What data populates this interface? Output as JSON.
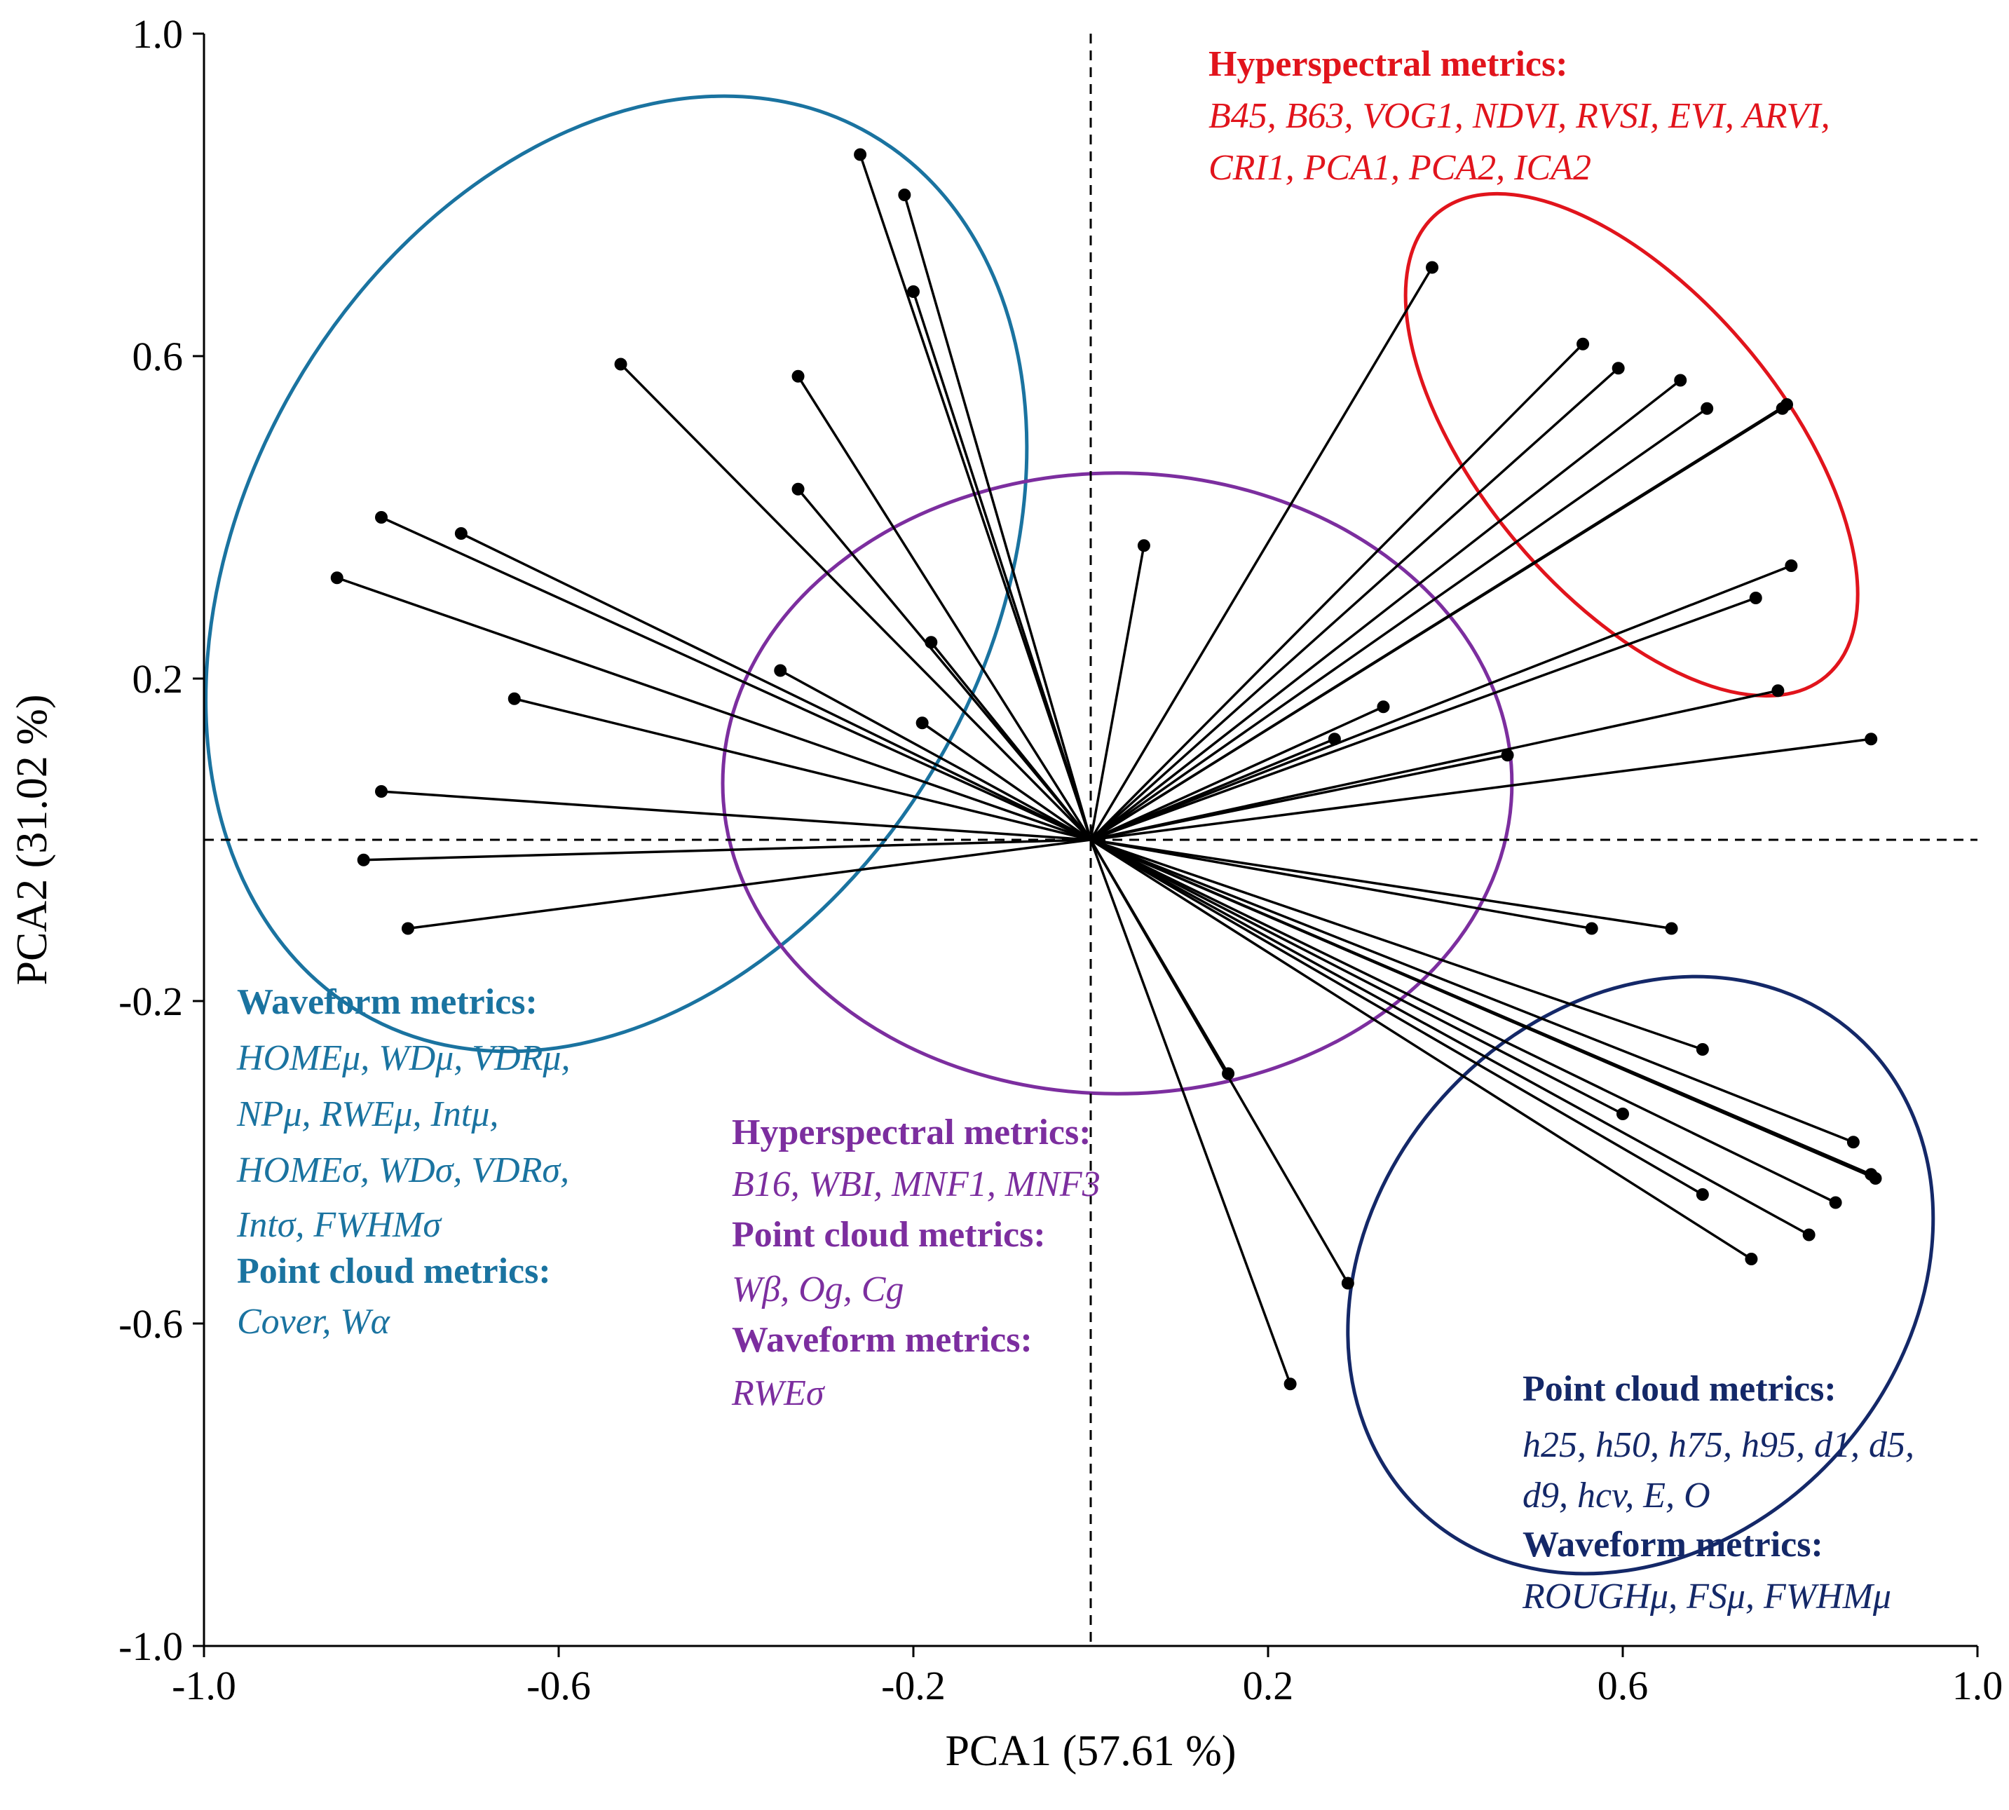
{
  "chart_data": {
    "type": "scatter",
    "subtype": "pca-biplot-loadings",
    "title": "",
    "xlabel": "PCA1 (57.61 %)",
    "ylabel": "PCA2 (31.02 %)",
    "xlim": [
      -1.0,
      1.0
    ],
    "ylim": [
      -1.0,
      1.0
    ],
    "xticks": [
      -1.0,
      -0.6,
      -0.2,
      0.2,
      0.6,
      1.0
    ],
    "yticks": [
      -1.0,
      -0.6,
      -0.2,
      0.2,
      0.6,
      1.0
    ],
    "xtick_labels": [
      "-1.0",
      "-0.6",
      "-0.2",
      "0.2",
      "0.6",
      "1.0"
    ],
    "ytick_labels": [
      "-1.0",
      "-0.6",
      "-0.2",
      "0.2",
      "0.6",
      "1.0"
    ],
    "reference_lines": {
      "x": 0,
      "y": 0,
      "style": "dashed"
    },
    "colors": {
      "teal": "#1A73A0",
      "red": "#E1141C",
      "purple": "#7C2E9F",
      "navy": "#142868",
      "vector": "#000000"
    },
    "vectors": [
      {
        "x": -0.26,
        "y": 0.85
      },
      {
        "x": -0.21,
        "y": 0.8
      },
      {
        "x": -0.2,
        "y": 0.68
      },
      {
        "x": -0.53,
        "y": 0.59
      },
      {
        "x": -0.33,
        "y": 0.575
      },
      {
        "x": -0.8,
        "y": 0.4
      },
      {
        "x": -0.71,
        "y": 0.38
      },
      {
        "x": -0.85,
        "y": 0.325
      },
      {
        "x": -0.33,
        "y": 0.435
      },
      {
        "x": -0.18,
        "y": 0.245
      },
      {
        "x": -0.35,
        "y": 0.21
      },
      {
        "x": -0.65,
        "y": 0.175
      },
      {
        "x": -0.19,
        "y": 0.145
      },
      {
        "x": -0.8,
        "y": 0.06
      },
      {
        "x": -0.82,
        "y": -0.025
      },
      {
        "x": -0.77,
        "y": -0.11
      },
      {
        "x": 0.06,
        "y": 0.365
      },
      {
        "x": 0.385,
        "y": 0.71
      },
      {
        "x": 0.555,
        "y": 0.615
      },
      {
        "x": 0.595,
        "y": 0.585
      },
      {
        "x": 0.665,
        "y": 0.57
      },
      {
        "x": 0.695,
        "y": 0.535
      },
      {
        "x": 0.785,
        "y": 0.54
      },
      {
        "x": 0.78,
        "y": 0.535
      },
      {
        "x": 0.79,
        "y": 0.34
      },
      {
        "x": 0.75,
        "y": 0.3
      },
      {
        "x": 0.775,
        "y": 0.185
      },
      {
        "x": 0.33,
        "y": 0.165
      },
      {
        "x": 0.275,
        "y": 0.125
      },
      {
        "x": 0.47,
        "y": 0.105
      },
      {
        "x": 0.88,
        "y": 0.125
      },
      {
        "x": 0.565,
        "y": -0.11
      },
      {
        "x": 0.655,
        "y": -0.11
      },
      {
        "x": 0.69,
        "y": -0.26
      },
      {
        "x": 0.86,
        "y": -0.375
      },
      {
        "x": 0.88,
        "y": -0.415
      },
      {
        "x": 0.885,
        "y": -0.42
      },
      {
        "x": 0.6,
        "y": -0.34
      },
      {
        "x": 0.69,
        "y": -0.44
      },
      {
        "x": 0.84,
        "y": -0.45
      },
      {
        "x": 0.81,
        "y": -0.49
      },
      {
        "x": 0.745,
        "y": -0.52
      },
      {
        "x": 0.155,
        "y": -0.29
      },
      {
        "x": 0.29,
        "y": -0.55
      },
      {
        "x": 0.225,
        "y": -0.675
      }
    ],
    "ellipses": [
      {
        "group": "teal",
        "cx": -0.535,
        "cy": 0.33,
        "rx": 0.42,
        "ry": 0.63,
        "angle_deg": 30
      },
      {
        "group": "red",
        "cx": 0.61,
        "cy": 0.49,
        "rx": 0.17,
        "ry": 0.375,
        "angle_deg": -40
      },
      {
        "group": "purple",
        "cx": 0.03,
        "cy": 0.07,
        "rx": 0.445,
        "ry": 0.385,
        "angle_deg": 0
      },
      {
        "group": "navy",
        "cx": 0.62,
        "cy": -0.54,
        "rx": 0.3,
        "ry": 0.4,
        "angle_deg": 42
      }
    ],
    "annotations": {
      "red": [
        {
          "bold": true,
          "text": "Hyperspectral metrics:"
        },
        {
          "italic": true,
          "text": "B45, B63, VOG1, NDVI, RVSI, EVI, ARVI,"
        },
        {
          "italic": true,
          "text": "CRI1, PCA1, PCA2, ICA2"
        }
      ],
      "teal": [
        {
          "bold": true,
          "text": "Waveform metrics:"
        },
        {
          "italic": true,
          "text": "HOMEμ, WDμ, VDRμ,"
        },
        {
          "italic": true,
          "text": "NPμ, RWEμ, Intμ,"
        },
        {
          "italic": true,
          "text": "HOMEσ, WDσ, VDRσ,"
        },
        {
          "italic": true,
          "text": "Intσ, FWHMσ"
        },
        {
          "bold": true,
          "text": "Point cloud metrics:"
        },
        {
          "italic": true,
          "text": "Cover, Wα"
        }
      ],
      "purple": [
        {
          "bold": true,
          "text": "Hyperspectral metrics:"
        },
        {
          "italic": true,
          "text": "B16, WBI, MNF1, MNF3"
        },
        {
          "bold": true,
          "text": "Point cloud metrics:"
        },
        {
          "italic": true,
          "text": "Wβ, Og, Cg"
        },
        {
          "bold": true,
          "text": "Waveform metrics:"
        },
        {
          "italic": true,
          "text": "RWEσ"
        }
      ],
      "navy": [
        {
          "bold": true,
          "text": "Point cloud metrics:"
        },
        {
          "italic": true,
          "text": "h25, h50, h75, h95, d1, d5,"
        },
        {
          "italic": true,
          "text": "d9, hcv, E, O"
        },
        {
          "bold": true,
          "text": "Waveform metrics:"
        },
        {
          "italic": true,
          "text": "ROUGHμ, FSμ, FWHMμ"
        }
      ]
    }
  }
}
